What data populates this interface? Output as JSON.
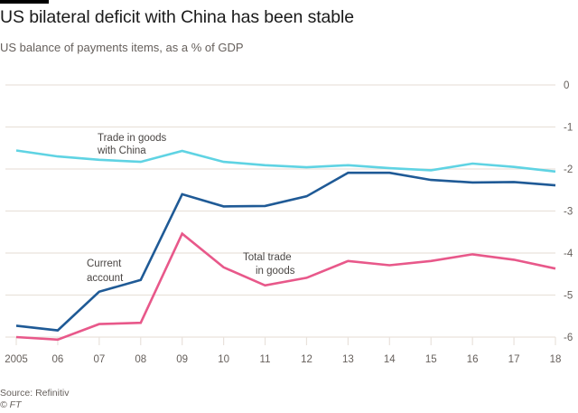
{
  "header": {
    "title": "US bilateral deficit with China has been stable",
    "subtitle": "US balance of payments items, as a % of GDP"
  },
  "footer": {
    "source": "Source: Refinitiv",
    "copyright": "© FT"
  },
  "chart_data": {
    "type": "line",
    "title": "US bilateral deficit with China has been stable",
    "subtitle": "US balance of payments items, as a % of GDP",
    "xlabel": "",
    "ylabel": "",
    "x": [
      2005,
      2006,
      2007,
      2008,
      2009,
      2010,
      2011,
      2012,
      2013,
      2014,
      2015,
      2016,
      2017,
      2018
    ],
    "x_tick_labels": [
      "2005",
      "06",
      "07",
      "08",
      "09",
      "10",
      "11",
      "12",
      "13",
      "14",
      "15",
      "16",
      "17",
      "18"
    ],
    "ylim": [
      -6,
      0
    ],
    "y_ticks": [
      0,
      -1,
      -2,
      -3,
      -4,
      -5,
      -6
    ],
    "y_tick_labels": [
      "0",
      "-1",
      "-2",
      "-3",
      "-4",
      "-5",
      "-6"
    ],
    "y_axis_side": "right",
    "grid": true,
    "legend": "inline-annotations",
    "series": [
      {
        "name": "Trade in goods with China",
        "label_lines": [
          "Trade in goods",
          "with China"
        ],
        "color": "#5fd3e3",
        "values": [
          -1.56,
          -1.7,
          -1.78,
          -1.83,
          -1.57,
          -1.83,
          -1.91,
          -1.96,
          -1.91,
          -1.98,
          -2.03,
          -1.87,
          -1.95,
          -2.06
        ]
      },
      {
        "name": "Current account",
        "label_lines": [
          "Current",
          "account"
        ],
        "color": "#1f5a96",
        "values": [
          -5.73,
          -5.84,
          -4.92,
          -4.64,
          -2.6,
          -2.89,
          -2.88,
          -2.65,
          -2.09,
          -2.09,
          -2.26,
          -2.32,
          -2.31,
          -2.39
        ]
      },
      {
        "name": "Total trade in goods",
        "label_lines": [
          "Total trade",
          "in goods"
        ],
        "color": "#e8588a",
        "values": [
          -6.0,
          -6.06,
          -5.69,
          -5.66,
          -3.54,
          -4.34,
          -4.77,
          -4.59,
          -4.19,
          -4.29,
          -4.19,
          -4.03,
          -4.16,
          -4.37
        ]
      }
    ],
    "colors": {
      "grid": "#e9e2dc",
      "axis_text": "#66605c"
    }
  }
}
